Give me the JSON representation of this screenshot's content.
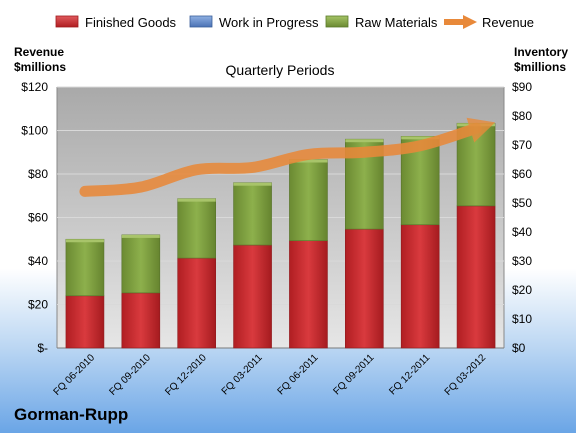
{
  "chart_data": {
    "type": "bar",
    "title": "Quarterly Periods",
    "company": "Gorman-Rupp",
    "left_axis_label_line1": "Revenue",
    "left_axis_label_line2": "$millions",
    "right_axis_label_line1": "Inventory",
    "right_axis_label_line2": "$millions",
    "categories": [
      "FQ 06-2010",
      "FQ 09-2010",
      "FQ 12-2010",
      "FQ 03-2011",
      "FQ 06-2011",
      "FQ 09-2011",
      "FQ 12-2011",
      "FQ 03-2012"
    ],
    "left_ylim": [
      0,
      120
    ],
    "right_ylim": [
      0,
      90
    ],
    "left_ticks": [
      "$-",
      "$20",
      "$40",
      "$60",
      "$80",
      "$100",
      "$120"
    ],
    "right_ticks": [
      "$0",
      "$10",
      "$20",
      "$30",
      "$40",
      "$50",
      "$60",
      "$70",
      "$80",
      "$90"
    ],
    "grid": true,
    "legend_position": "top",
    "series": [
      {
        "name": "Finished Goods",
        "axis": "right",
        "stack": true,
        "color": "#c0262a",
        "values": [
          18,
          19,
          31,
          35.5,
          37,
          41,
          42.5,
          49
        ]
      },
      {
        "name": "Work in Progress",
        "axis": "right",
        "stack": true,
        "color": "#5b83c6",
        "values": [
          0,
          0,
          0,
          0,
          0,
          0,
          0,
          0
        ]
      },
      {
        "name": "Raw Materials",
        "axis": "right",
        "stack": true,
        "color": "#7a9a3c",
        "values": [
          19.5,
          20,
          20.5,
          21.5,
          28,
          31,
          30.5,
          28.5
        ]
      },
      {
        "name": "Revenue",
        "axis": "left",
        "type": "line",
        "color": "#e8893a",
        "values": [
          72,
          74,
          82,
          83,
          89,
          90,
          93,
          101
        ]
      }
    ]
  }
}
